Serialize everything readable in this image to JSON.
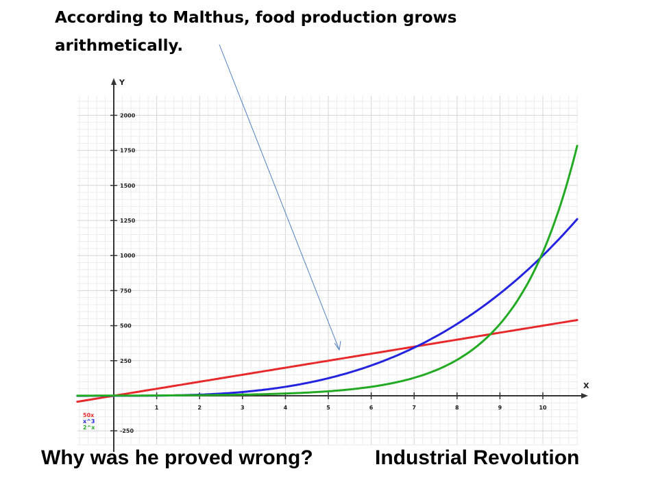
{
  "annotation": {
    "line1": "According to Malthus, food production grows",
    "line2": "arithmetically."
  },
  "bottom": {
    "question": "Why was he proved wrong?",
    "answer": "Industrial Revolution"
  },
  "chart_data": {
    "type": "line",
    "xlabel": "X",
    "ylabel": "Y",
    "xlim": [
      -0.85,
      10.85
    ],
    "ylim": [
      -300,
      2200
    ],
    "x_ticks": [
      1,
      2,
      3,
      4,
      5,
      6,
      7,
      8,
      9,
      10
    ],
    "y_ticks": [
      -250,
      250,
      500,
      750,
      1000,
      1250,
      1500,
      1750,
      2000
    ],
    "grid": true,
    "legend_position": "bottom-left",
    "series": [
      {
        "name": "50x",
        "color": "#e8292b",
        "x": [
          -0.85,
          0,
          2,
          4,
          6,
          8,
          10,
          10.8
        ],
        "y": [
          -42.5,
          0,
          100,
          200,
          300,
          400,
          500,
          540
        ]
      },
      {
        "name": "x^3",
        "color": "#2323e0",
        "x": [
          -0.85,
          0,
          1,
          2,
          3,
          4,
          5,
          6,
          7,
          8,
          9,
          10,
          10.8
        ],
        "y": [
          -0.6,
          0,
          1,
          8,
          27,
          64,
          125,
          216,
          343,
          512,
          729,
          1000,
          1260
        ]
      },
      {
        "name": "2^x",
        "color": "#22aa22",
        "x": [
          -0.85,
          0,
          1,
          2,
          3,
          4,
          5,
          6,
          7,
          8,
          9,
          10,
          10.8
        ],
        "y": [
          0.6,
          1,
          2,
          4,
          8,
          16,
          32,
          64,
          128,
          256,
          512,
          1024,
          1783
        ]
      }
    ]
  }
}
